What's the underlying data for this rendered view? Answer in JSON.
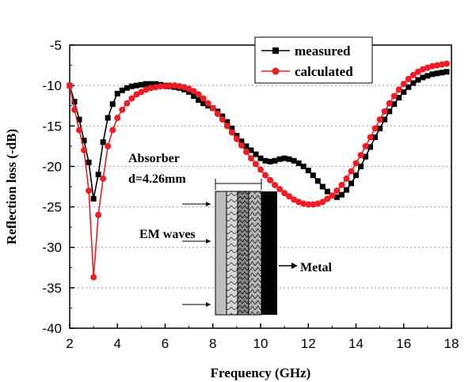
{
  "chart_data": {
    "type": "line",
    "title": "",
    "xlabel": "Frequency (GHz)",
    "ylabel": "Reflection loss (-dB)",
    "xlim": [
      2,
      18
    ],
    "ylim": [
      -40,
      -5
    ],
    "xticks": [
      2,
      4,
      6,
      8,
      10,
      12,
      14,
      16,
      18
    ],
    "yticks": [
      -5,
      -10,
      -15,
      -20,
      -25,
      -30,
      -35,
      -40
    ],
    "grid": "horizontal dotted",
    "legend_position": "top-right",
    "series": [
      {
        "name": "measured",
        "color": "#000000",
        "marker": "square",
        "x": [
          2.0,
          2.2,
          2.4,
          2.6,
          2.8,
          3.0,
          3.2,
          3.4,
          3.6,
          3.8,
          4.0,
          4.2,
          4.4,
          4.6,
          4.8,
          5.0,
          5.2,
          5.4,
          5.6,
          5.8,
          6.0,
          6.2,
          6.4,
          6.6,
          6.8,
          7.0,
          7.2,
          7.4,
          7.6,
          7.8,
          8.0,
          8.2,
          8.4,
          8.6,
          8.8,
          9.0,
          9.2,
          9.4,
          9.6,
          9.8,
          10.0,
          10.2,
          10.4,
          10.6,
          10.8,
          11.0,
          11.2,
          11.4,
          11.6,
          11.8,
          12.0,
          12.2,
          12.4,
          12.6,
          12.8,
          13.0,
          13.2,
          13.4,
          13.6,
          13.8,
          14.0,
          14.2,
          14.4,
          14.6,
          14.8,
          15.0,
          15.2,
          15.4,
          15.6,
          15.8,
          16.0,
          16.2,
          16.4,
          16.6,
          16.8,
          17.0,
          17.2,
          17.4,
          17.6,
          17.8
        ],
        "values": [
          -10.0,
          -12.0,
          -14.2,
          -16.8,
          -19.5,
          -24.0,
          -21.0,
          -17.0,
          -14.0,
          -12.3,
          -11.0,
          -10.6,
          -10.3,
          -10.1,
          -10.0,
          -9.9,
          -9.8,
          -9.8,
          -9.8,
          -9.9,
          -10.0,
          -10.1,
          -10.2,
          -10.3,
          -10.5,
          -10.8,
          -11.3,
          -11.8,
          -12.2,
          -12.5,
          -12.8,
          -13.2,
          -13.8,
          -14.5,
          -15.3,
          -16.2,
          -16.9,
          -17.5,
          -18.0,
          -18.5,
          -19.0,
          -19.3,
          -19.4,
          -19.3,
          -19.1,
          -19.0,
          -19.1,
          -19.3,
          -19.6,
          -20.0,
          -20.5,
          -21.1,
          -21.8,
          -22.5,
          -23.1,
          -23.6,
          -23.8,
          -23.5,
          -22.9,
          -22.1,
          -21.1,
          -20.0,
          -18.8,
          -17.6,
          -16.4,
          -15.3,
          -14.2,
          -13.2,
          -12.3,
          -11.5,
          -10.8,
          -10.2,
          -9.7,
          -9.3,
          -9.0,
          -8.8,
          -8.6,
          -8.5,
          -8.4,
          -8.3
        ]
      },
      {
        "name": "calculated",
        "color": "#ee1c25",
        "marker": "circle",
        "x": [
          2.0,
          2.2,
          2.4,
          2.6,
          2.8,
          3.0,
          3.2,
          3.4,
          3.6,
          3.8,
          4.0,
          4.2,
          4.4,
          4.6,
          4.8,
          5.0,
          5.2,
          5.4,
          5.6,
          5.8,
          6.0,
          6.2,
          6.4,
          6.6,
          6.8,
          7.0,
          7.2,
          7.4,
          7.6,
          7.8,
          8.0,
          8.2,
          8.4,
          8.6,
          8.8,
          9.0,
          9.2,
          9.4,
          9.6,
          9.8,
          10.0,
          10.2,
          10.4,
          10.6,
          10.8,
          11.0,
          11.2,
          11.4,
          11.6,
          11.8,
          12.0,
          12.2,
          12.4,
          12.6,
          12.8,
          13.0,
          13.2,
          13.4,
          13.6,
          13.8,
          14.0,
          14.2,
          14.4,
          14.6,
          14.8,
          15.0,
          15.2,
          15.4,
          15.6,
          15.8,
          16.0,
          16.2,
          16.4,
          16.6,
          16.8,
          17.0,
          17.2,
          17.4,
          17.6,
          17.8
        ],
        "values": [
          -10.0,
          -13.0,
          -15.5,
          -18.0,
          -23.0,
          -33.7,
          -26.0,
          -21.5,
          -17.5,
          -15.5,
          -14.0,
          -13.0,
          -12.2,
          -11.6,
          -11.1,
          -10.8,
          -10.5,
          -10.3,
          -10.2,
          -10.1,
          -10.1,
          -10.0,
          -10.0,
          -10.1,
          -10.2,
          -10.4,
          -10.7,
          -11.1,
          -11.6,
          -12.2,
          -12.8,
          -13.5,
          -14.2,
          -15.0,
          -15.8,
          -16.6,
          -17.4,
          -18.2,
          -19.0,
          -19.7,
          -20.4,
          -21.1,
          -21.7,
          -22.3,
          -22.8,
          -23.3,
          -23.7,
          -24.1,
          -24.4,
          -24.6,
          -24.7,
          -24.7,
          -24.6,
          -24.4,
          -24.0,
          -23.6,
          -23.0,
          -22.3,
          -21.5,
          -20.6,
          -19.6,
          -18.6,
          -17.5,
          -16.4,
          -15.3,
          -14.2,
          -13.2,
          -12.2,
          -11.3,
          -10.5,
          -9.8,
          -9.2,
          -8.7,
          -8.3,
          -8.0,
          -7.8,
          -7.6,
          -7.5,
          -7.4,
          -7.3
        ]
      }
    ],
    "legend": [
      {
        "label": "measured"
      },
      {
        "label": "calculated"
      }
    ],
    "inset": {
      "absorber_label": "Absorber",
      "thickness_label": "d=4.26mm",
      "waves_label": "EM waves",
      "metal_label": "Metal"
    }
  },
  "colors": {
    "measured": "#000000",
    "calculated": "#ee1c25",
    "grid": "#9a9a9a",
    "metal": "#000000"
  }
}
